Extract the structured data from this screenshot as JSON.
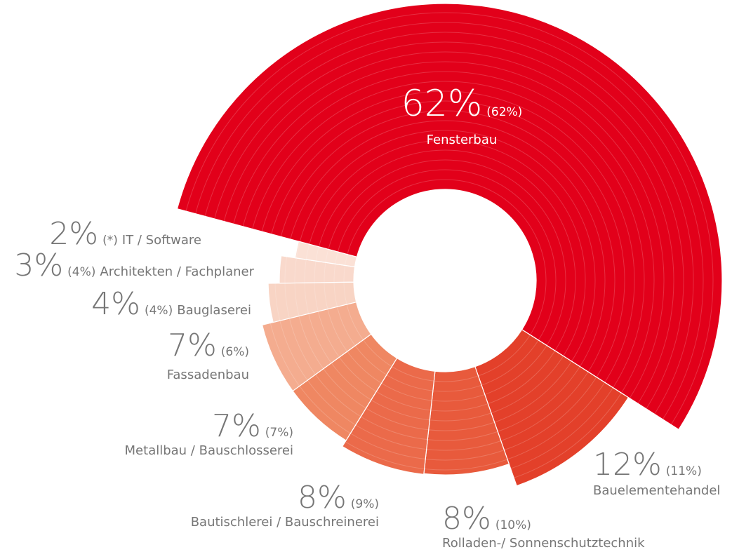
{
  "chart_data": {
    "type": "pie",
    "categories": [
      "Fensterbau",
      "Bauelementehandel",
      "Rolladen-/ Sonnenschutztechnik",
      "Bautischlerei / Bauschreinerei",
      "Metallbau / Bauschlosserei",
      "Fassadenbau",
      "Bauglaserei",
      "Architekten / Fachplaner",
      "IT / Software"
    ],
    "values": [
      62,
      12,
      8,
      8,
      7,
      7,
      4,
      3,
      2
    ],
    "value_labels": [
      "62%",
      "12%",
      "8%",
      "8%",
      "7%",
      "7%",
      "4%",
      "3%",
      "2%"
    ],
    "previous_values": [
      62,
      11,
      10,
      9,
      7,
      6,
      4,
      4,
      null
    ],
    "previous_labels": [
      "(62%)",
      "(11%)",
      "(10%)",
      "(9%)",
      "(7%)",
      "(6%)",
      "(4%)",
      "(4%)",
      "(*)"
    ],
    "colors": [
      "#e2001a",
      "#e3402a",
      "#e85a3c",
      "#eb6a4a",
      "#ef8762",
      "#f4ac8f",
      "#f8d4c4",
      "#f9d9cc",
      "#fbe1d6"
    ]
  }
}
